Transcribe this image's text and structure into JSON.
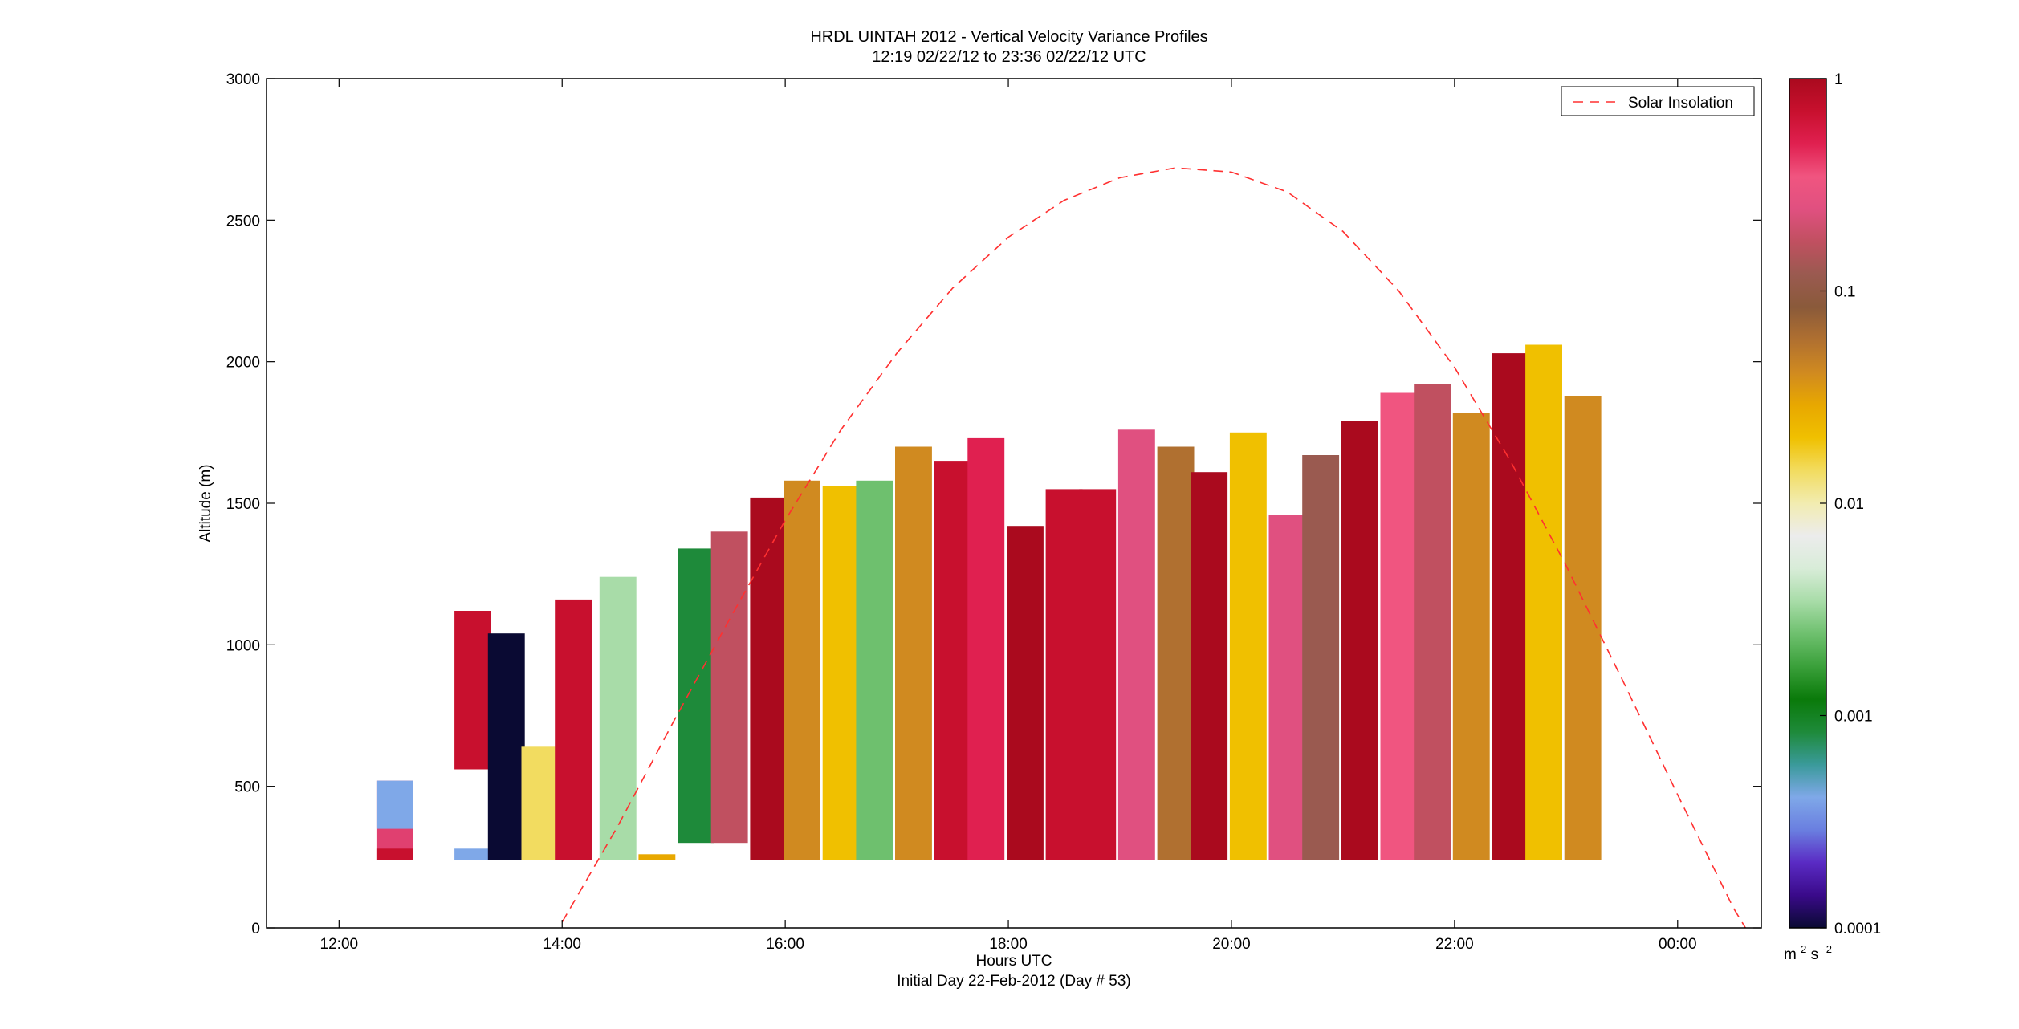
{
  "chart_data": {
    "type": "heatmap",
    "title": "HRDL UINTAH 2012 - Vertical Velocity Variance Profiles",
    "subtitle": "12:19 02/22/12 to 23:36 02/22/12  UTC",
    "xlabel": "Hours UTC",
    "xlabel2": "Initial Day 22-Feb-2012 (Day # 53)",
    "ylabel": "Altitude (m)",
    "xlim": [
      11.35,
      24.75
    ],
    "ylim": [
      0,
      3000
    ],
    "x_ticks": [
      {
        "value": 12,
        "label": "12:00"
      },
      {
        "value": 14,
        "label": "14:00"
      },
      {
        "value": 16,
        "label": "16:00"
      },
      {
        "value": 18,
        "label": "18:00"
      },
      {
        "value": 20,
        "label": "20:00"
      },
      {
        "value": 22,
        "label": "22:00"
      },
      {
        "value": 24,
        "label": "00:00"
      }
    ],
    "y_ticks": [
      0,
      500,
      1000,
      1500,
      2000,
      2500,
      3000
    ],
    "colorbar": {
      "scale": "log",
      "min": 0.0001,
      "max": 1,
      "ticks": [
        {
          "value": 1,
          "label": "1"
        },
        {
          "value": 0.1,
          "label": "0.1"
        },
        {
          "value": 0.01,
          "label": "0.01"
        },
        {
          "value": 0.001,
          "label": "0.001"
        },
        {
          "value": 0.0001,
          "label": "0.0001"
        }
      ],
      "unit_base": "m",
      "unit_exp1": "2",
      "unit_mid": "s",
      "unit_exp2": "-2",
      "palette": [
        "#0a0a33",
        "#3a0a8a",
        "#5a2bc4",
        "#6a7fe0",
        "#7fa8e8",
        "#3a9a9a",
        "#1e8a3a",
        "#0a7a0a",
        "#3aa03a",
        "#6ec06e",
        "#a8dca8",
        "#d8ecd8",
        "#ececec",
        "#f2ecb0",
        "#f2dc60",
        "#f0c000",
        "#e8a800",
        "#d08a20",
        "#b07030",
        "#8a5a3a",
        "#9a5a50",
        "#c05060",
        "#e05080",
        "#f05580",
        "#e02050",
        "#c8102e",
        "#aa0a1e"
      ]
    },
    "legend": {
      "label": "Solar Insolation",
      "color": "#ff3030",
      "style": "dashed",
      "position": "top-right"
    },
    "solar_insolation": {
      "x": [
        14.0,
        14.5,
        15.0,
        15.5,
        16.0,
        16.5,
        17.0,
        17.5,
        18.0,
        18.5,
        19.0,
        19.5,
        20.0,
        20.5,
        21.0,
        21.5,
        22.0,
        22.5,
        23.0,
        23.5,
        24.0,
        24.5,
        24.7
      ],
      "y": [
        20,
        360,
        730,
        1090,
        1440,
        1760,
        2030,
        2260,
        2440,
        2570,
        2650,
        2685,
        2670,
        2600,
        2460,
        2250,
        1980,
        1650,
        1280,
        880,
        470,
        70,
        -80
      ]
    },
    "profiles": [
      {
        "t": 12.5,
        "segs": [
          [
            240,
            520,
            "#e04070"
          ],
          [
            350,
            520,
            "#7fa8e8"
          ],
          [
            240,
            280,
            "#c8102e"
          ]
        ]
      },
      {
        "t": 13.2,
        "segs": [
          [
            240,
            280,
            "#7fa8e8"
          ],
          [
            560,
            1120,
            "#c8102e"
          ]
        ]
      },
      {
        "t": 13.5,
        "segs": [
          [
            240,
            1040,
            "#0a0a33"
          ]
        ]
      },
      {
        "t": 13.8,
        "segs": [
          [
            240,
            640,
            "#f2dc60"
          ]
        ]
      },
      {
        "t": 14.1,
        "segs": [
          [
            240,
            1160,
            "#c8102e"
          ]
        ]
      },
      {
        "t": 14.5,
        "segs": [
          [
            240,
            1240,
            "#a8dca8"
          ]
        ]
      },
      {
        "t": 14.85,
        "segs": [
          [
            240,
            260,
            "#e8a800"
          ]
        ]
      },
      {
        "t": 15.2,
        "segs": [
          [
            300,
            1340,
            "#1e8a3a"
          ]
        ]
      },
      {
        "t": 15.5,
        "segs": [
          [
            300,
            1400,
            "#c05060"
          ]
        ]
      },
      {
        "t": 15.85,
        "segs": [
          [
            240,
            1520,
            "#aa0a1e"
          ]
        ]
      },
      {
        "t": 16.15,
        "segs": [
          [
            240,
            1580,
            "#d08a20"
          ]
        ]
      },
      {
        "t": 16.5,
        "segs": [
          [
            240,
            1560,
            "#f0c000"
          ]
        ]
      },
      {
        "t": 16.8,
        "segs": [
          [
            240,
            1580,
            "#6ec06e"
          ]
        ]
      },
      {
        "t": 17.15,
        "segs": [
          [
            240,
            1700,
            "#d08a20"
          ]
        ]
      },
      {
        "t": 17.5,
        "segs": [
          [
            240,
            1650,
            "#c8102e"
          ]
        ]
      },
      {
        "t": 17.8,
        "segs": [
          [
            240,
            1730,
            "#e02050"
          ]
        ]
      },
      {
        "t": 18.15,
        "segs": [
          [
            240,
            1420,
            "#aa0a1e"
          ]
        ]
      },
      {
        "t": 18.5,
        "segs": [
          [
            240,
            1550,
            "#c8102e"
          ]
        ]
      },
      {
        "t": 18.8,
        "segs": [
          [
            240,
            1550,
            "#c8102e"
          ]
        ]
      },
      {
        "t": 19.15,
        "segs": [
          [
            240,
            1760,
            "#e05080"
          ]
        ]
      },
      {
        "t": 19.5,
        "segs": [
          [
            240,
            1700,
            "#b07030"
          ]
        ]
      },
      {
        "t": 19.8,
        "segs": [
          [
            240,
            1610,
            "#aa0a1e"
          ]
        ]
      },
      {
        "t": 20.15,
        "segs": [
          [
            240,
            1750,
            "#f0c000"
          ]
        ]
      },
      {
        "t": 20.5,
        "segs": [
          [
            240,
            1460,
            "#e05080"
          ]
        ]
      },
      {
        "t": 20.8,
        "segs": [
          [
            240,
            1670,
            "#9a5a50"
          ]
        ]
      },
      {
        "t": 21.15,
        "segs": [
          [
            240,
            1790,
            "#aa0a1e"
          ]
        ]
      },
      {
        "t": 21.5,
        "segs": [
          [
            240,
            1890,
            "#f05580"
          ]
        ]
      },
      {
        "t": 21.8,
        "segs": [
          [
            240,
            1920,
            "#c05060"
          ]
        ]
      },
      {
        "t": 22.15,
        "segs": [
          [
            240,
            1820,
            "#d08a20"
          ]
        ]
      },
      {
        "t": 22.5,
        "segs": [
          [
            240,
            2030,
            "#aa0a1e"
          ]
        ]
      },
      {
        "t": 22.8,
        "segs": [
          [
            240,
            2060,
            "#f0c000"
          ]
        ]
      },
      {
        "t": 23.15,
        "segs": [
          [
            240,
            1880,
            "#d08a20"
          ]
        ]
      }
    ]
  }
}
